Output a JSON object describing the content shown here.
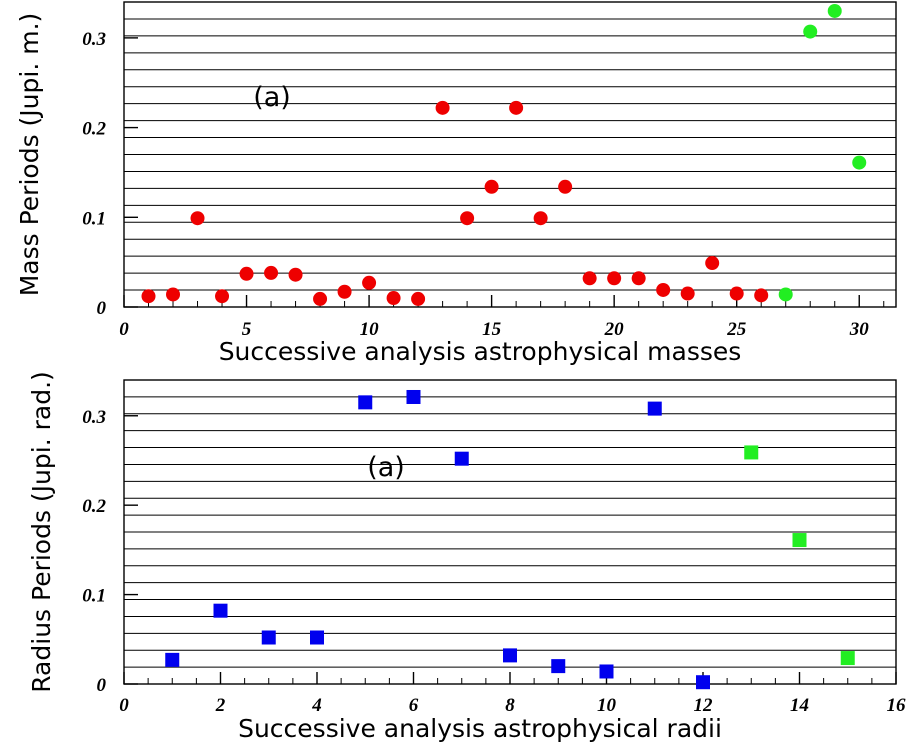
{
  "chart_data": [
    {
      "type": "scatter",
      "title": "",
      "xlabel": "Successive analysis astrophysical masses",
      "ylabel": "Mass Periods (Jupi. m.)",
      "annotation": "(a)",
      "xlim": [
        0,
        31.5
      ],
      "ylim": [
        0,
        0.34
      ],
      "x_ticks": [
        0,
        5,
        10,
        15,
        20,
        25,
        30
      ],
      "x_tick_labels": [
        "0",
        "5",
        "10",
        "15",
        "20",
        "25",
        "30"
      ],
      "y_ticks": [
        0,
        0.1,
        0.2,
        0.3
      ],
      "y_tick_labels": [
        "0",
        "0.1",
        "0.2",
        "0.3"
      ],
      "grid": "horizontal",
      "marker": "circle",
      "series": [
        {
          "color": "#ee0000",
          "x": [
            1,
            2,
            3,
            4,
            5,
            6,
            7,
            8,
            9,
            10,
            11,
            12,
            13,
            14,
            15,
            16,
            17,
            18,
            19,
            20,
            21,
            22,
            23,
            24,
            25,
            26
          ],
          "y": [
            0.012,
            0.014,
            0.099,
            0.012,
            0.037,
            0.038,
            0.036,
            0.009,
            0.017,
            0.027,
            0.01,
            0.009,
            0.222,
            0.099,
            0.134,
            0.222,
            0.099,
            0.134,
            0.032,
            0.032,
            0.032,
            0.019,
            0.015,
            0.049,
            0.015,
            0.013
          ]
        },
        {
          "color": "#22ee22",
          "x": [
            27,
            28,
            29,
            30
          ],
          "y": [
            0.014,
            0.307,
            0.33,
            0.161
          ]
        }
      ]
    },
    {
      "type": "scatter",
      "title": "",
      "xlabel": "Successive analysis astrophysical radii",
      "ylabel": "Radius Periods (Jupi. rad.)",
      "annotation": "(a)",
      "xlim": [
        0,
        16
      ],
      "ylim": [
        0,
        0.34
      ],
      "x_ticks": [
        0,
        2,
        4,
        6,
        8,
        10,
        12,
        14,
        16
      ],
      "x_tick_labels": [
        "0",
        "2",
        "4",
        "6",
        "8",
        "10",
        "12",
        "14",
        "16"
      ],
      "y_ticks": [
        0,
        0.1,
        0.2,
        0.3
      ],
      "y_tick_labels": [
        "0",
        "0.1",
        "0.2",
        "0.3"
      ],
      "grid": "horizontal",
      "marker": "square",
      "series": [
        {
          "color": "#0000ee",
          "x": [
            1,
            2,
            3,
            4,
            5,
            6,
            7,
            8,
            9,
            10,
            11,
            12
          ],
          "y": [
            0.027,
            0.082,
            0.052,
            0.052,
            0.315,
            0.321,
            0.252,
            0.032,
            0.02,
            0.014,
            0.308,
            0.002
          ]
        },
        {
          "color": "#22ee22",
          "x": [
            13,
            14,
            15
          ],
          "y": [
            0.259,
            0.161,
            0.029
          ]
        }
      ]
    }
  ]
}
